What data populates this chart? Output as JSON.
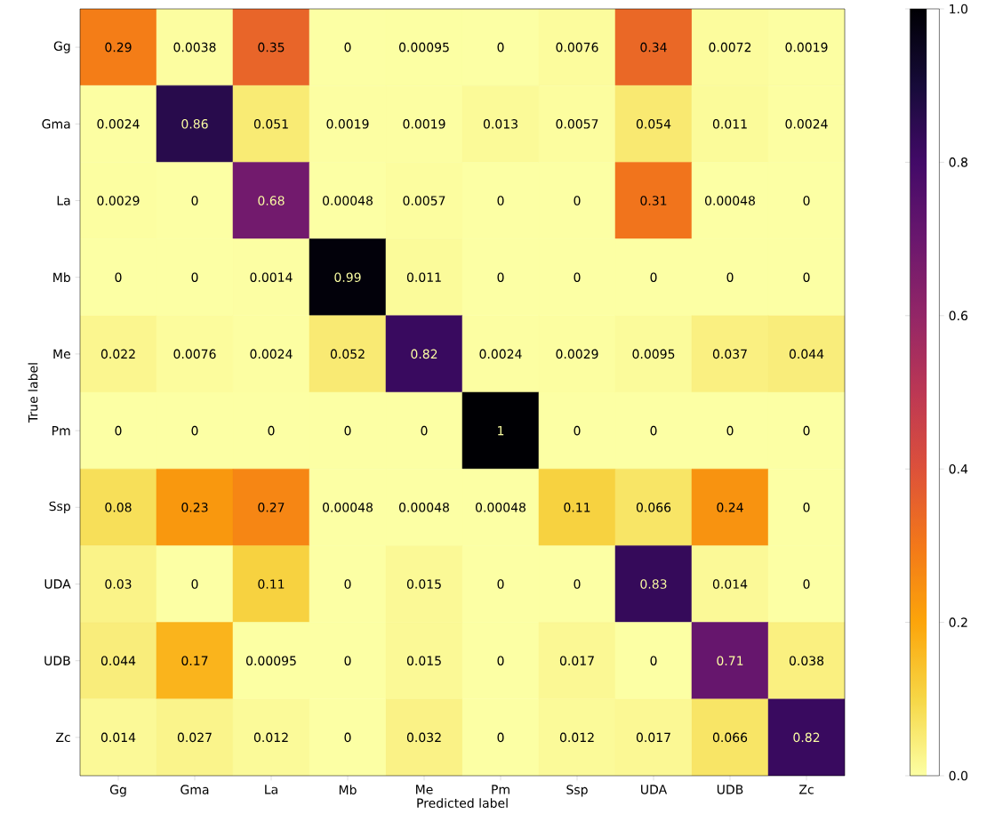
{
  "chart_data": {
    "type": "heatmap",
    "xlabel": "Predicted label",
    "ylabel": "True label",
    "categories": [
      "Gg",
      "Gma",
      "La",
      "Mb",
      "Me",
      "Pm",
      "Ssp",
      "UDA",
      "UDB",
      "Zc"
    ],
    "y_categories": [
      "Gg",
      "Gma",
      "La",
      "Mb",
      "Me",
      "Pm",
      "Ssp",
      "UDA",
      "UDB",
      "Zc"
    ],
    "cells": [
      [
        0.29,
        0.0038,
        0.35,
        0,
        0.00095,
        0,
        0.0076,
        0.34,
        0.0072,
        0.0019
      ],
      [
        0.0024,
        0.86,
        0.051,
        0.0019,
        0.0019,
        0.013,
        0.0057,
        0.054,
        0.011,
        0.0024
      ],
      [
        0.0029,
        0,
        0.68,
        0.00048,
        0.0057,
        0,
        0,
        0.31,
        0.00048,
        0
      ],
      [
        0,
        0,
        0.0014,
        0.99,
        0.011,
        0,
        0,
        0,
        0,
        0
      ],
      [
        0.022,
        0.0076,
        0.0024,
        0.052,
        0.82,
        0.0024,
        0.0029,
        0.0095,
        0.037,
        0.044
      ],
      [
        0,
        0,
        0,
        0,
        0,
        1,
        0,
        0,
        0,
        0
      ],
      [
        0.08,
        0.23,
        0.27,
        0.00048,
        0.00048,
        0.00048,
        0.11,
        0.066,
        0.24,
        0
      ],
      [
        0.03,
        0,
        0.11,
        0,
        0.015,
        0,
        0,
        0.83,
        0.014,
        0
      ],
      [
        0.044,
        0.17,
        0.00095,
        0,
        0.015,
        0,
        0.017,
        0,
        0.71,
        0.038
      ],
      [
        0.014,
        0.027,
        0.012,
        0,
        0.032,
        0,
        0.012,
        0.017,
        0.066,
        0.82
      ]
    ],
    "data_labels": true,
    "clim": [
      0,
      1
    ],
    "cticks": [
      {
        "value": 0,
        "label": "0.0"
      },
      {
        "value": 0.2,
        "label": "0.2"
      },
      {
        "value": 0.4,
        "label": "0.4"
      },
      {
        "value": 0.6,
        "label": "0.6"
      },
      {
        "value": 0.8,
        "label": "0.8"
      },
      {
        "value": 1,
        "label": "1.0"
      }
    ]
  }
}
